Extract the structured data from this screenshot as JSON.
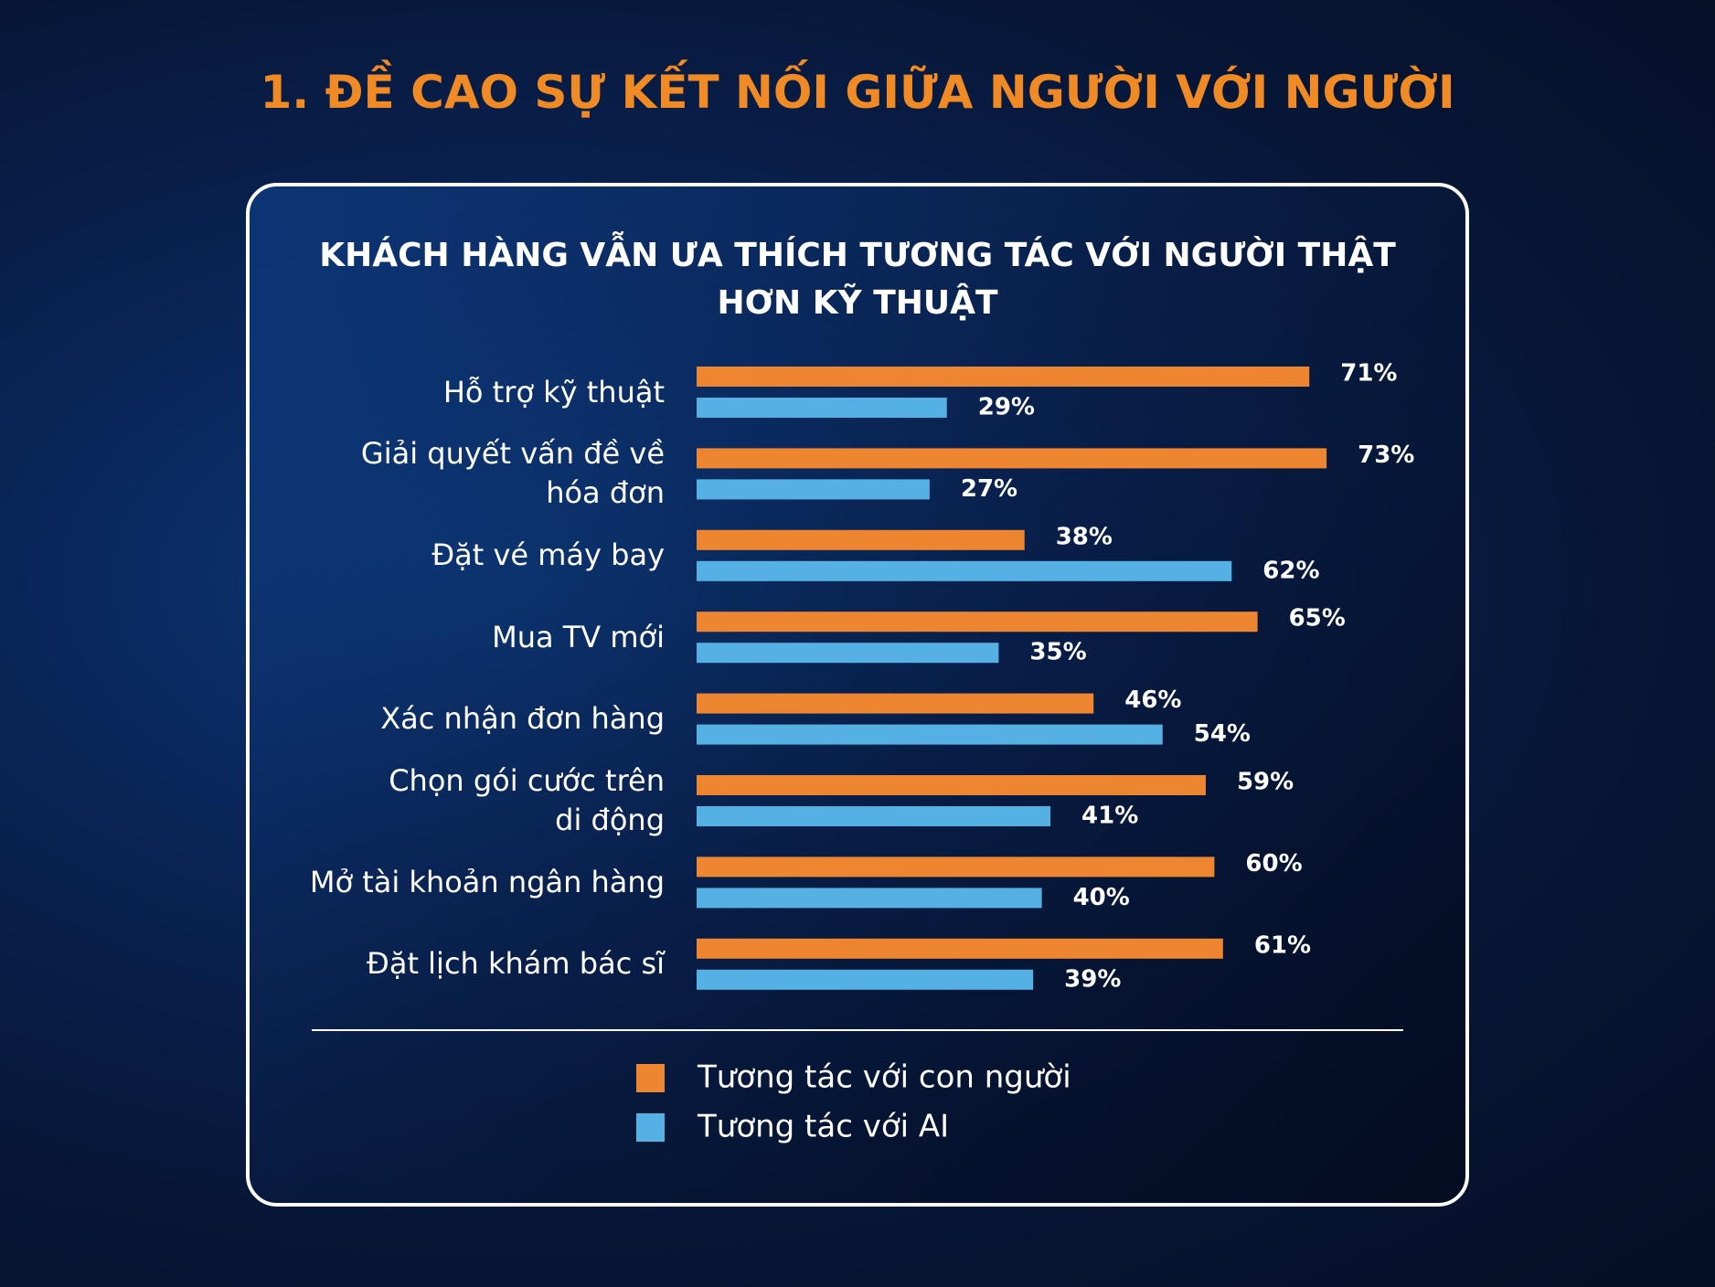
{
  "title": "1. ĐỀ CAO SỰ KẾT NỐI GIỮA NGƯỜI VỚI NGƯỜI",
  "chart_data": {
    "type": "bar",
    "orientation": "horizontal",
    "title": "KHÁCH HÀNG VẪN ƯA THÍCH TƯƠNG TÁC VỚI NGƯỜI THẬT\nHƠN KỸ THUẬT",
    "categories": [
      "Hỗ trợ kỹ thuật",
      "Giải quyết vấn đề về\nhóa đơn",
      "Đặt vé máy bay",
      "Mua TV mới",
      "Xác nhận đơn hàng",
      "Chọn gói cước trên\ndi động",
      "Mở tài khoản ngân hàng",
      "Đặt lịch khám bác sĩ"
    ],
    "series": [
      {
        "name": "Tương tác với con người",
        "color": "#ee8530",
        "values": [
          71,
          73,
          38,
          65,
          46,
          59,
          60,
          61
        ],
        "value_labels": [
          "71%",
          "73%",
          "38%",
          "65%",
          "46%",
          "59%",
          "60%",
          "61%"
        ]
      },
      {
        "name": "Tương tác với AI",
        "color": "#55b0e4",
        "values": [
          29,
          27,
          62,
          35,
          54,
          41,
          40,
          39
        ],
        "value_labels": [
          "29%",
          "27%",
          "62%",
          "35%",
          "54%",
          "41%",
          "40%",
          "39%"
        ]
      }
    ]
  }
}
